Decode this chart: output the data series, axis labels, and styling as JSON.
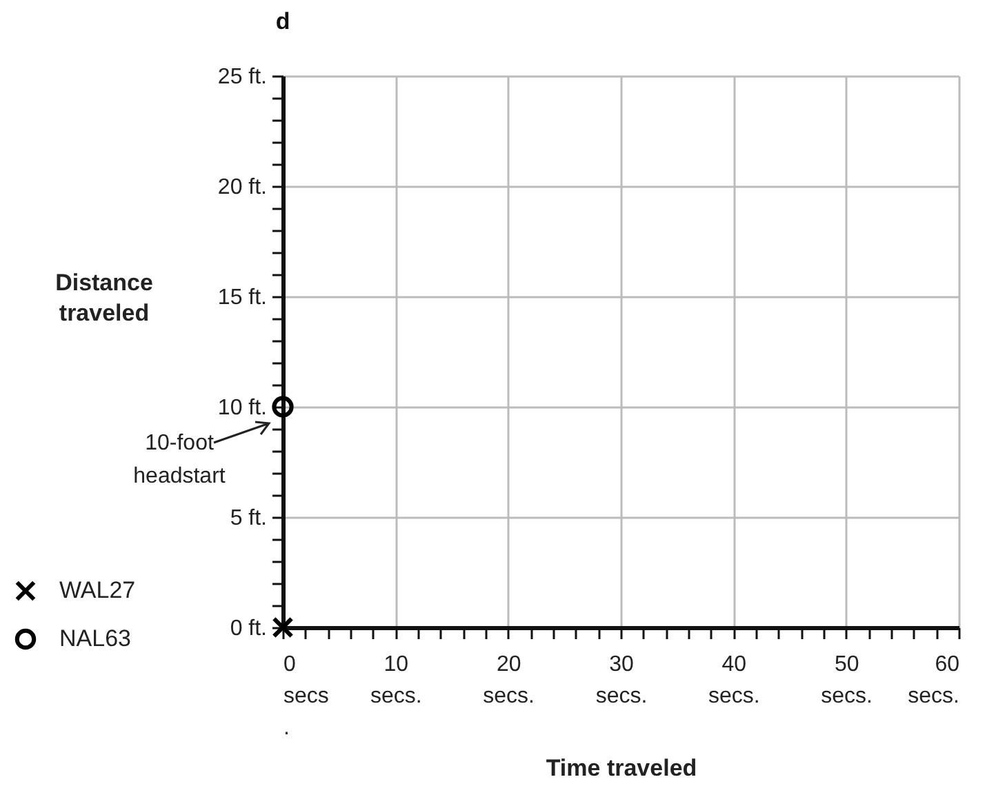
{
  "chart_data": {
    "type": "scatter",
    "xlabel": "Time traveled",
    "ylabel": "Distance traveled",
    "annotations": [
      "d",
      {
        "text": "10-foot headstart",
        "x": 0,
        "y": 10
      }
    ],
    "series": [
      {
        "name": "WAL27",
        "color": "#000000",
        "marker": "cross",
        "x": [
          0
        ],
        "values": [
          0
        ]
      },
      {
        "name": "NAL63",
        "color": "#000000",
        "marker": "circle",
        "x": [
          0
        ],
        "values": [
          10
        ]
      }
    ],
    "xlim": [
      0,
      60
    ],
    "xticks": [
      {
        "value": 0,
        "label": "0 secs ."
      },
      {
        "value": 2,
        "label": null
      },
      {
        "value": 4,
        "label": null
      },
      {
        "value": 6,
        "label": null
      },
      {
        "value": 8,
        "label": null
      },
      {
        "value": 10,
        "label": "10 secs."
      },
      {
        "value": 12,
        "label": null
      },
      {
        "value": 14,
        "label": null
      },
      {
        "value": 16,
        "label": null
      },
      {
        "value": 18,
        "label": null
      },
      {
        "value": 20,
        "label": "20 secs."
      },
      {
        "value": 22,
        "label": null
      },
      {
        "value": 24,
        "label": null
      },
      {
        "value": 26,
        "label": null
      },
      {
        "value": 28,
        "label": null
      },
      {
        "value": 30,
        "label": "30 secs."
      },
      {
        "value": 32,
        "label": null
      },
      {
        "value": 34,
        "label": null
      },
      {
        "value": 36,
        "label": null
      },
      {
        "value": 38,
        "label": null
      },
      {
        "value": 40,
        "label": "40 secs."
      },
      {
        "value": 42,
        "label": null
      },
      {
        "value": 44,
        "label": null
      },
      {
        "value": 46,
        "label": null
      },
      {
        "value": 48,
        "label": null
      },
      {
        "value": 50,
        "label": "50 secs."
      },
      {
        "value": 52,
        "label": null
      },
      {
        "value": 54,
        "label": null
      },
      {
        "value": 56,
        "label": null
      },
      {
        "value": 58,
        "label": null
      },
      {
        "value": 60,
        "label": "60 secs."
      }
    ],
    "ylim": [
      0,
      25
    ],
    "yticks": [
      {
        "value": 0,
        "label": "0 ft."
      },
      {
        "value": 1,
        "label": null
      },
      {
        "value": 2,
        "label": null
      },
      {
        "value": 3,
        "label": null
      },
      {
        "value": 4,
        "label": null
      },
      {
        "value": 5,
        "label": "5 ft."
      },
      {
        "value": 6,
        "label": null
      },
      {
        "value": 7,
        "label": null
      },
      {
        "value": 8,
        "label": null
      },
      {
        "value": 9,
        "label": null
      },
      {
        "value": 10,
        "label": "10 ft."
      },
      {
        "value": 11,
        "label": null
      },
      {
        "value": 12,
        "label": null
      },
      {
        "value": 13,
        "label": null
      },
      {
        "value": 14,
        "label": null
      },
      {
        "value": 15,
        "label": "15 ft."
      },
      {
        "value": 16,
        "label": null
      },
      {
        "value": 17,
        "label": null
      },
      {
        "value": 18,
        "label": null
      },
      {
        "value": 19,
        "label": null
      },
      {
        "value": 20,
        "label": "20 ft."
      },
      {
        "value": 21,
        "label": null
      },
      {
        "value": 22,
        "label": null
      },
      {
        "value": 23,
        "label": null
      },
      {
        "value": 24,
        "label": null
      },
      {
        "value": 25,
        "label": "25 ft."
      }
    ],
    "grid": true,
    "legend": "bottom left"
  }
}
